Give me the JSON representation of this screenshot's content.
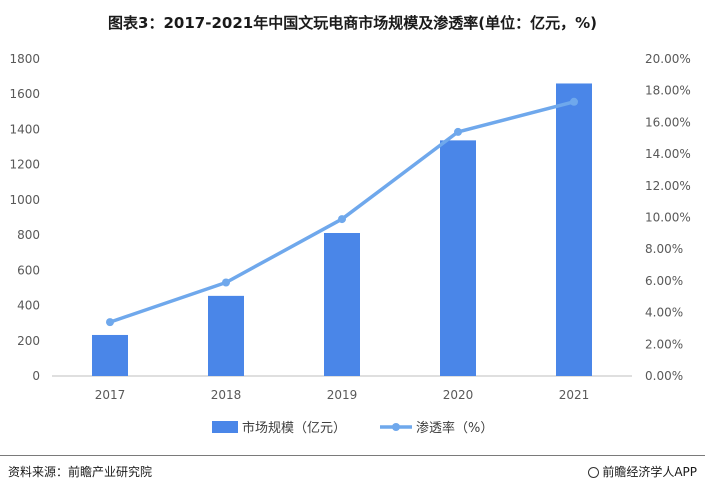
{
  "title": "图表3：2017-2021年中国文玩电商市场规模及渗透率(单位：亿元，%)",
  "chart_data": {
    "type": "bar+line",
    "categories": [
      "2017",
      "2018",
      "2019",
      "2020",
      "2021"
    ],
    "series": [
      {
        "name": "市场规模（亿元）",
        "type": "bar",
        "axis": "left",
        "color": "#4a86e8",
        "values": [
          233,
          455,
          812,
          1338,
          1661
        ]
      },
      {
        "name": "渗透率（%）",
        "type": "line",
        "axis": "right",
        "color": "#6fa8ec",
        "values": [
          3.4,
          5.9,
          9.9,
          15.4,
          17.3
        ]
      }
    ],
    "y_left": {
      "range": [
        0,
        1800
      ],
      "ticks": [
        "0",
        "200",
        "400",
        "600",
        "800",
        "1000",
        "1200",
        "1400",
        "1600",
        "1800"
      ]
    },
    "y_right": {
      "range": [
        0,
        20
      ],
      "ticks": [
        "0.00%",
        "2.00%",
        "4.00%",
        "6.00%",
        "8.00%",
        "10.00%",
        "12.00%",
        "14.00%",
        "16.00%",
        "18.00%",
        "20.00%"
      ]
    },
    "legend_position": "bottom",
    "grid": false
  },
  "footer": {
    "source": "资料来源：前瞻产业研究院",
    "brand": "前瞻经济学人APP"
  }
}
